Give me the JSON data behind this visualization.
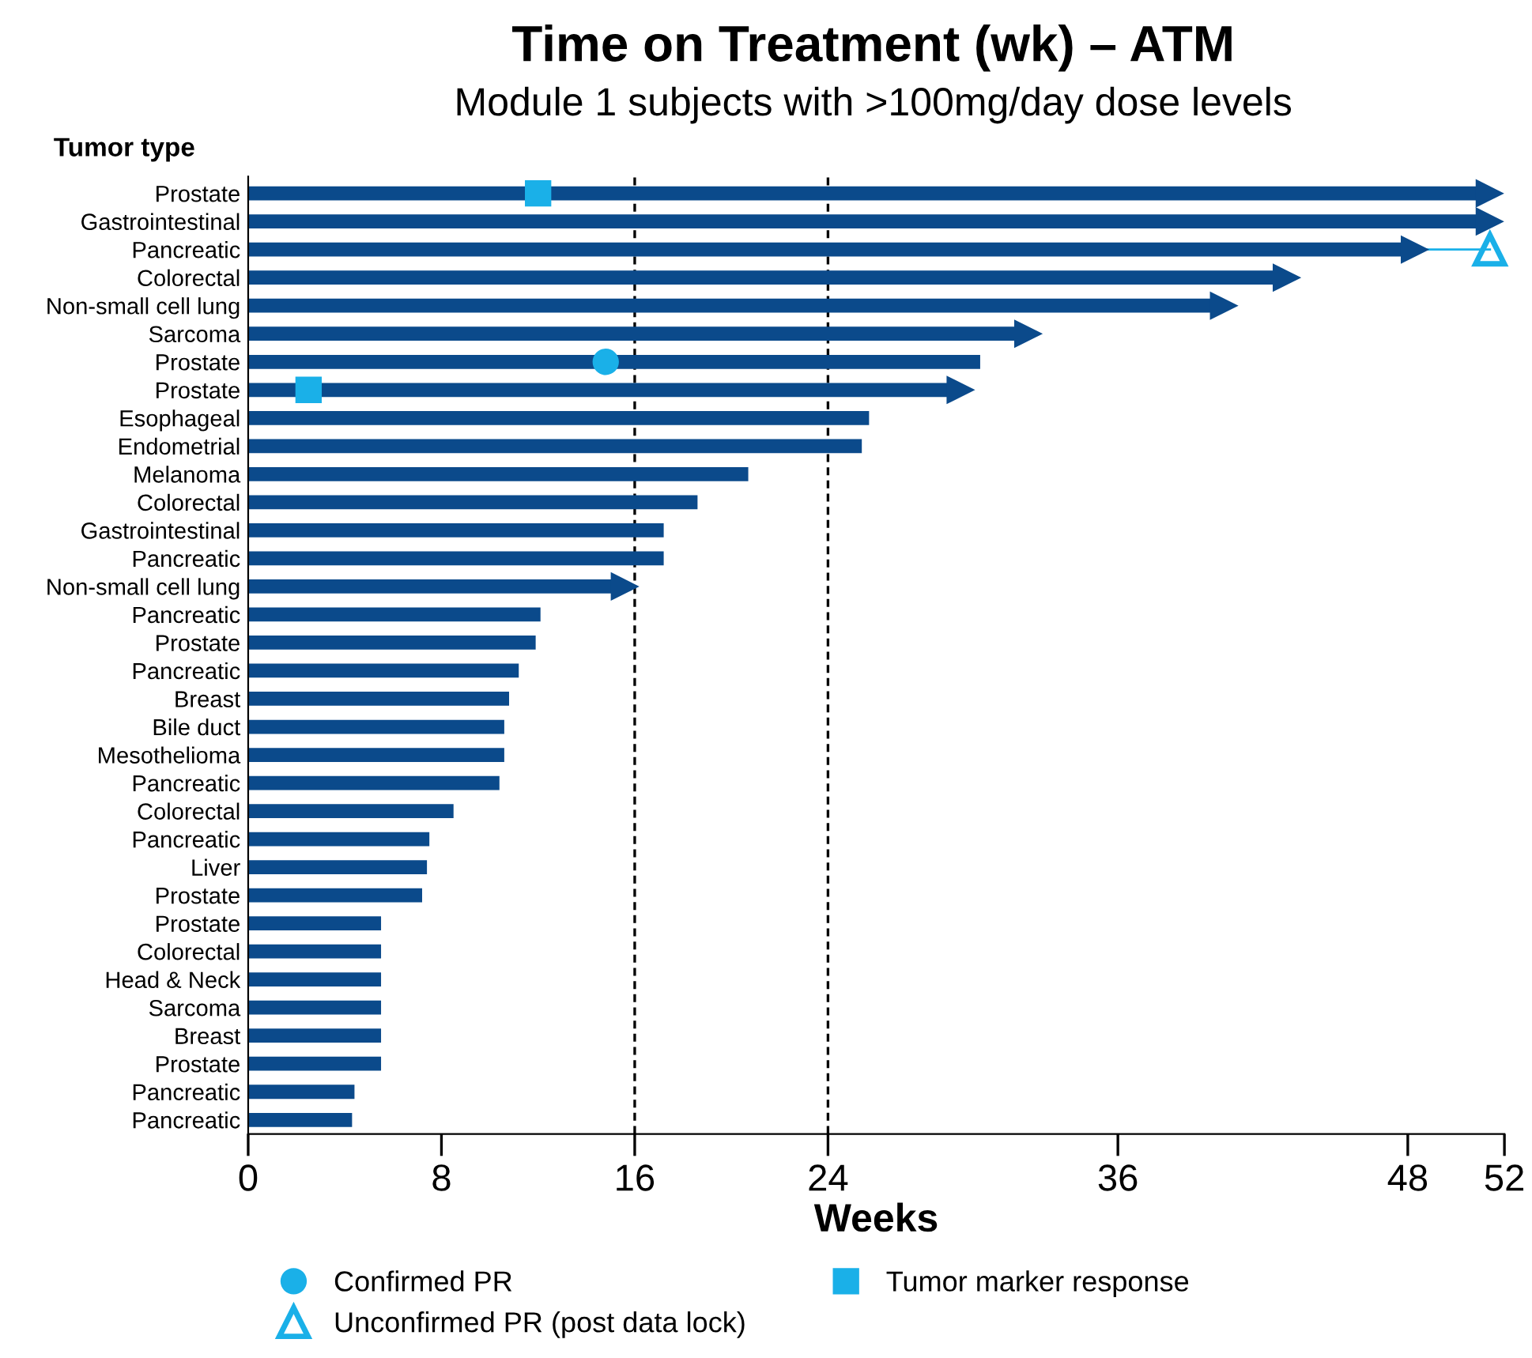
{
  "chart_data": {
    "type": "bar",
    "orientation": "horizontal",
    "title": "Time on Treatment (wk) – ATM",
    "subtitle": "Module 1 subjects with >100mg/day dose levels",
    "ylabel": "Tumor type",
    "xlabel": "Weeks",
    "categories": [
      "Prostate",
      "Gastrointestinal",
      "Pancreatic",
      "Colorectal",
      "Non-small cell lung",
      "Sarcoma",
      "Prostate",
      "Prostate",
      "Esophageal",
      "Endometrial",
      "Melanoma",
      "Colorectal",
      "Gastrointestinal",
      "Pancreatic",
      "Non-small cell lung",
      "Pancreatic",
      "Prostate",
      "Pancreatic",
      "Breast",
      "Bile duct",
      "Mesothelioma",
      "Pancreatic",
      "Colorectal",
      "Pancreatic",
      "Liver",
      "Prostate",
      "Prostate",
      "Colorectal",
      "Head & Neck",
      "Sarcoma",
      "Breast",
      "Prostate",
      "Pancreatic",
      "Pancreatic"
    ],
    "series": [
      {
        "color": "#0b4a8b",
        "values": [
          51.1,
          51.1,
          48.0,
          42.7,
          40.1,
          32.0,
          30.3,
          29.2,
          25.7,
          25.4,
          20.7,
          18.6,
          17.2,
          17.2,
          15.3,
          12.1,
          11.9,
          11.2,
          10.8,
          10.6,
          10.6,
          10.4,
          8.5,
          7.5,
          7.4,
          7.2,
          5.5,
          5.5,
          5.5,
          5.5,
          5.5,
          5.5,
          4.4,
          4.3
        ]
      },
      {
        "type": "scatter",
        "marker": "triangle",
        "color": "#0b4a8b",
        "values": [
          51.4,
          51.4,
          48.3,
          43.0,
          40.4,
          32.3,
          null,
          29.5,
          null,
          null,
          null,
          null,
          null,
          null,
          15.6,
          null,
          null,
          null,
          null,
          null,
          null,
          null,
          null,
          null,
          null,
          null,
          null,
          null,
          null,
          null,
          null,
          null,
          null,
          null
        ]
      },
      {
        "type": "scatter",
        "name": "Confirmed PR",
        "marker": "circle",
        "color": "#1ab0e8",
        "values": [
          null,
          null,
          null,
          null,
          null,
          null,
          14.8,
          null,
          null,
          null,
          null,
          null,
          null,
          null,
          null,
          null,
          null,
          null,
          null,
          null,
          null,
          null,
          null,
          null,
          null,
          null,
          null,
          null,
          null,
          null,
          null,
          null,
          null,
          null
        ]
      },
      {
        "type": "scatter",
        "name": "Tumor marker response",
        "marker": "square",
        "color": "#1ab0e8",
        "values": [
          12.0,
          null,
          null,
          null,
          null,
          null,
          null,
          2.5,
          null,
          null,
          null,
          null,
          null,
          null,
          null,
          null,
          null,
          null,
          null,
          null,
          null,
          null,
          null,
          null,
          null,
          null,
          null,
          null,
          null,
          null,
          null,
          null,
          null,
          null
        ]
      },
      {
        "type": "scatter",
        "name": "Unconfirmed PR (post data lock)",
        "marker": "triangle",
        "color": "#1ab0e8",
        "values": [
          null,
          null,
          51.4,
          null,
          null,
          null,
          null,
          null,
          null,
          null,
          null,
          null,
          null,
          null,
          null,
          null,
          null,
          null,
          null,
          null,
          null,
          null,
          null,
          null,
          null,
          null,
          null,
          null,
          null,
          null,
          null,
          null,
          null,
          null
        ]
      }
    ],
    "xlim": [
      0,
      52
    ],
    "xticks": [
      0,
      8,
      16,
      24,
      36,
      48,
      52
    ],
    "ref_lines": [
      {
        "axis": "x",
        "value": 16,
        "color": "#000000",
        "line_style": "dashed"
      },
      {
        "axis": "x",
        "value": 24,
        "color": "#000000",
        "line_style": "dashed"
      }
    ],
    "grid": false,
    "legend": "bottom"
  }
}
